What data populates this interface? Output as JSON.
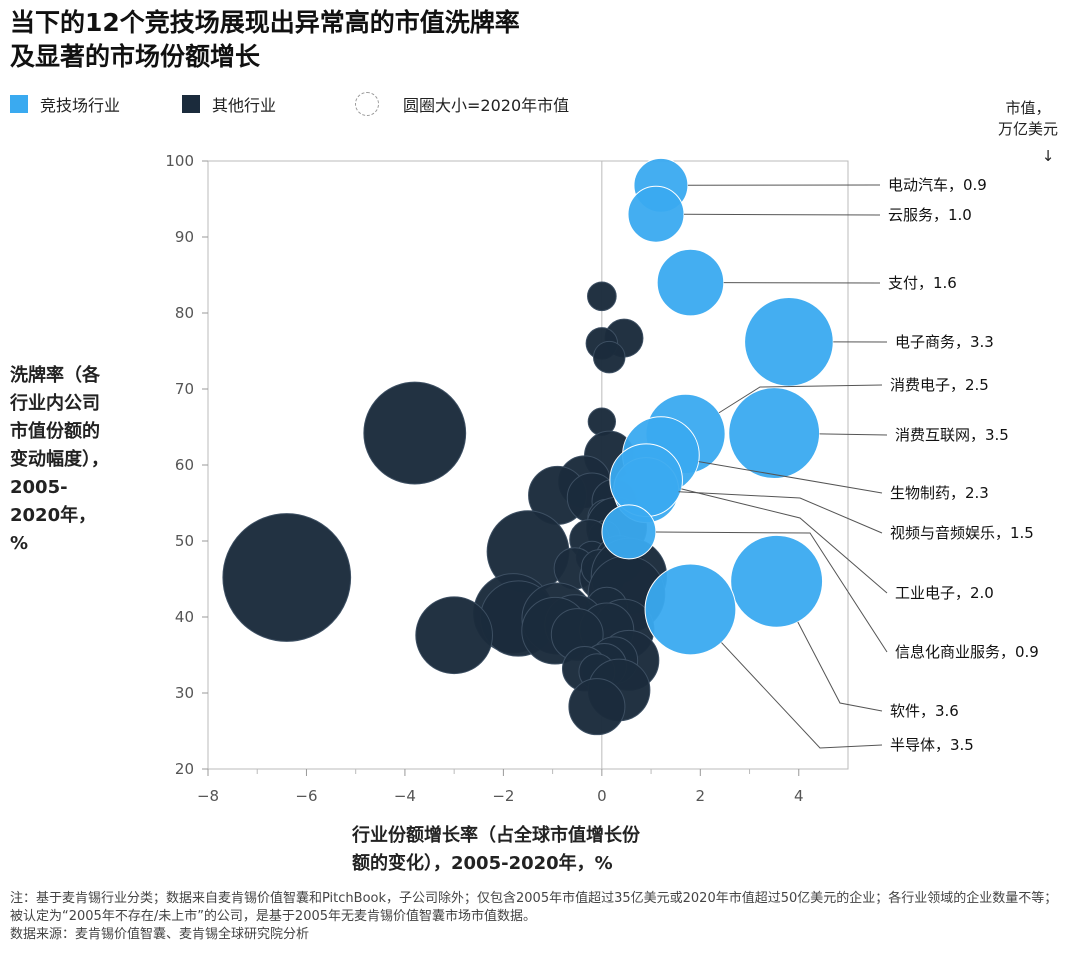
{
  "title": "当下的12个竞技场展现出异常高的市值洗牌率\n及显著的市场份额增长",
  "legend": {
    "arena": "竞技场行业",
    "other": "其他行业",
    "size": "圆圈大小=2020年市值"
  },
  "unit_label": "市值，\n万亿美元",
  "unit_arrow": "↓",
  "colors": {
    "arena": "#3aaaf0",
    "other": "#1b2b3c",
    "axis": "#bbbbbb"
  },
  "chart_data": {
    "type": "scatter",
    "xlabel": "行业份额增长率（占全球市值增长份额的变化），2005-2020年，%",
    "ylabel": "洗牌率（各行业内公司市值份额的变动幅度），2005-2020年，%",
    "xlim": [
      -8,
      5
    ],
    "ylim": [
      20,
      100
    ],
    "x_ticks": [
      -8,
      -6,
      -4,
      -2,
      0,
      2,
      4
    ],
    "x_tick_labels": [
      "−8",
      "−6",
      "−4",
      "−2",
      "0",
      "2",
      "4"
    ],
    "y_ticks": [
      20,
      30,
      40,
      50,
      60,
      70,
      80,
      90,
      100
    ],
    "size_encoding": "圆圈大小=2020年市值",
    "arena_points": [
      {
        "name": "电动汽车",
        "label": "电动汽车，0.9",
        "x": 1.2,
        "y": 96.8,
        "value": 0.9
      },
      {
        "name": "云服务",
        "label": "云服务，1.0",
        "x": 1.1,
        "y": 93.0,
        "value": 1.0
      },
      {
        "name": "支付",
        "label": "支付，1.6",
        "x": 1.8,
        "y": 84.0,
        "value": 1.6
      },
      {
        "name": "电子商务",
        "label": "电子商务，3.3",
        "x": 3.8,
        "y": 76.2,
        "value": 3.3
      },
      {
        "name": "消费电子",
        "label": "消费电子，2.5",
        "x": 1.7,
        "y": 64.1,
        "value": 2.5
      },
      {
        "name": "消费互联网",
        "label": "消费互联网，3.5",
        "x": 3.5,
        "y": 64.2,
        "value": 3.5
      },
      {
        "name": "生物制药",
        "label": "生物制药，2.3",
        "x": 1.2,
        "y": 61.3,
        "value": 2.3
      },
      {
        "name": "视频与音频娱乐",
        "label": "视频与音频娱乐，1.5",
        "x": 0.9,
        "y": 56.7,
        "value": 1.5
      },
      {
        "name": "工业电子",
        "label": "工业电子，2.0",
        "x": 0.9,
        "y": 58.0,
        "value": 2.0
      },
      {
        "name": "信息化商业服务",
        "label": "信息化商业服务，0.9",
        "x": 0.55,
        "y": 51.2,
        "value": 0.9
      },
      {
        "name": "软件",
        "label": "软件，3.6",
        "x": 3.55,
        "y": 44.7,
        "value": 3.6
      },
      {
        "name": "半导体",
        "label": "半导体，3.5",
        "x": 1.8,
        "y": 41.0,
        "value": 3.5
      }
    ],
    "other_points": [
      {
        "x": 0.0,
        "y": 82.2,
        "value": 0.1
      },
      {
        "x": 0.45,
        "y": 76.7,
        "value": 0.3
      },
      {
        "x": 0.0,
        "y": 76.0,
        "value": 0.15
      },
      {
        "x": 0.15,
        "y": 74.2,
        "value": 0.15
      },
      {
        "x": 0.0,
        "y": 65.7,
        "value": 0.08
      },
      {
        "x": -3.8,
        "y": 64.2,
        "value": 4.6
      },
      {
        "x": 0.15,
        "y": 61.2,
        "value": 0.7
      },
      {
        "x": -0.35,
        "y": 57.8,
        "value": 0.8
      },
      {
        "x": -0.9,
        "y": 56.0,
        "value": 1.1
      },
      {
        "x": -0.2,
        "y": 55.7,
        "value": 0.7
      },
      {
        "x": 0.25,
        "y": 55.2,
        "value": 0.5
      },
      {
        "x": 0.1,
        "y": 53.0,
        "value": 0.3
      },
      {
        "x": 0.3,
        "y": 51.8,
        "value": 1.2
      },
      {
        "x": 0.05,
        "y": 50.6,
        "value": 0.15
      },
      {
        "x": -0.25,
        "y": 50.2,
        "value": 0.35
      },
      {
        "x": -1.5,
        "y": 48.6,
        "value": 2.7
      },
      {
        "x": -0.2,
        "y": 47.9,
        "value": 0.15
      },
      {
        "x": 0.35,
        "y": 47.6,
        "value": 0.6
      },
      {
        "x": -0.55,
        "y": 46.4,
        "value": 0.4
      },
      {
        "x": 0.0,
        "y": 45.2,
        "value": 0.5
      },
      {
        "x": -0.05,
        "y": 46.5,
        "value": 0.25
      },
      {
        "x": 0.55,
        "y": 45.4,
        "value": 2.2
      },
      {
        "x": -6.4,
        "y": 45.2,
        "value": 7.8
      },
      {
        "x": 0.5,
        "y": 43.0,
        "value": 2.3
      },
      {
        "x": 0.1,
        "y": 41.2,
        "value": 0.4
      },
      {
        "x": -1.8,
        "y": 40.5,
        "value": 2.5
      },
      {
        "x": -1.7,
        "y": 39.8,
        "value": 2.2
      },
      {
        "x": -0.9,
        "y": 39.8,
        "value": 1.9
      },
      {
        "x": -0.55,
        "y": 39.0,
        "value": 1.2
      },
      {
        "x": -0.95,
        "y": 38.2,
        "value": 1.6
      },
      {
        "x": 0.45,
        "y": 38.4,
        "value": 1.2
      },
      {
        "x": 0.1,
        "y": 38.3,
        "value": 0.9
      },
      {
        "x": -0.5,
        "y": 37.7,
        "value": 0.8
      },
      {
        "x": -3.0,
        "y": 37.6,
        "value": 2.3
      },
      {
        "x": 0.55,
        "y": 34.3,
        "value": 1.2
      },
      {
        "x": 0.25,
        "y": 34.3,
        "value": 0.6
      },
      {
        "x": 0.05,
        "y": 33.6,
        "value": 0.5
      },
      {
        "x": -0.35,
        "y": 33.2,
        "value": 0.5
      },
      {
        "x": -0.1,
        "y": 32.8,
        "value": 0.25
      },
      {
        "x": 0.35,
        "y": 30.4,
        "value": 1.3
      },
      {
        "x": -0.1,
        "y": 28.2,
        "value": 1.0
      }
    ]
  },
  "y_axis_label": "洗牌率（各\n行业内公司\n市值份额的\n变动幅度），\n2005-\n2020年，\n%",
  "x_axis_label": "行业份额增长率（占全球市值增长份\n额的变化），2005-2020年，%",
  "footnote": "注：基于麦肯锡行业分类；数据来自麦肯锡价值智囊和PitchBook，子公司除外；仅包含2005年市值超过35亿美元或2020年市值超过50亿美元的企业；各行业领域的企业数量不等；被认定为“2005年不存在/未上市”的公司，是基于2005年无麦肯锡价值智囊市场市值数据。\n数据来源：麦肯锡价值智囊、麦肯锡全球研究院分析"
}
